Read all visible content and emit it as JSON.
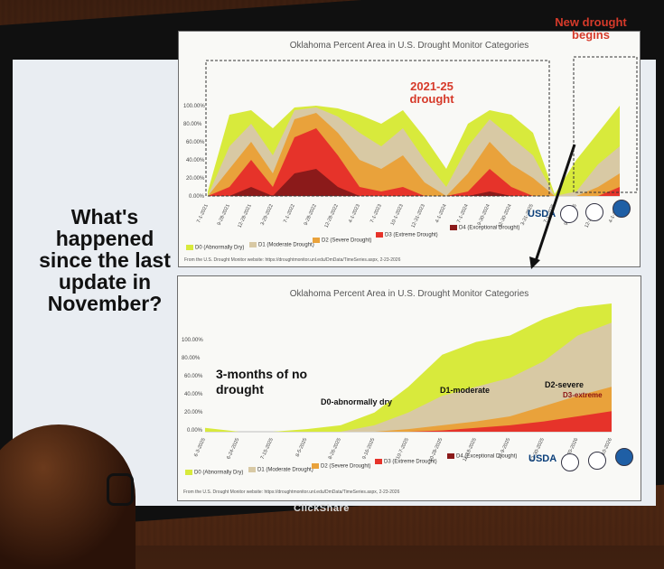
{
  "slide": {
    "question": "What's happened since the last update in November?",
    "brand": "ClickShare"
  },
  "chart_top": {
    "title": "Oklahoma Percent Area in U.S. Drought Monitor Categories",
    "annotation_drought": "2021-25 drought",
    "annotation_new": "New drought begins",
    "yticks": [
      "100.00%",
      "80.00%",
      "60.00%",
      "40.00%",
      "20.00%",
      "0.00%"
    ],
    "xticks": [
      "7-1-2021",
      "9-28-2021",
      "12-28-2021",
      "3-29-2022",
      "7-1-2022",
      "9-28-2022",
      "12-28-2022",
      "4-1-2023",
      "7-1-2023",
      "10-1-2023",
      "12-31-2023",
      "4-1-2024",
      "7-1-2024",
      "9-30-2024",
      "12-30-2024",
      "3-31-2025",
      "7-1-2025",
      "9-30-2025",
      "12-30-2025",
      "4-1-2026"
    ],
    "legend": [
      "D0 (Abnormally Dry)",
      "D1 (Moderate Drought)",
      "D2 (Severe Drought)",
      "D3 (Extreme Drought)",
      "D4 (Exceptional Drought)"
    ],
    "source": "From the U.S. Drought Monitor website: https://droughtmonitor.unl.edu/DmData/TimeSeries.aspx, 2-23-2026",
    "usda": "USDA"
  },
  "chart_bottom": {
    "title": "Oklahoma Percent Area in U.S. Drought Monitor Categories",
    "annotation_nodrought": "3-months of no drought",
    "label_d0": "D0-abnormally dry",
    "label_d1": "D1-moderate",
    "label_d2": "D2-severe",
    "label_d3": "D3-extreme",
    "yticks": [
      "100.00%",
      "80.00%",
      "60.00%",
      "40.00%",
      "20.00%",
      "0.00%"
    ],
    "xticks": [
      "6-3-2025",
      "6-24-2025",
      "7-15-2025",
      "8-5-2025",
      "8-26-2025",
      "9-16-2025",
      "10-7-2025",
      "10-28-2025",
      "11-18-2025",
      "12-9-2025",
      "12-30-2025",
      "1-20-2026",
      "2-10-2026"
    ],
    "legend": [
      "D0 (Abnormally Dry)",
      "D1 (Moderate Drought)",
      "D2 (Severe Drought)",
      "D3 (Extreme Drought)",
      "D4 (Exceptional Drought)"
    ],
    "source": "From the U.S. Drought Monitor website: https://droughtmonitor.unl.edu/DmData/TimeSeries.aspx, 2-23-2026",
    "usda": "USDA"
  },
  "colors": {
    "d0": "#d8ea3c",
    "d1": "#d8c9a4",
    "d2": "#e9a23b",
    "d3": "#e6332a",
    "d4": "#8b1a1a"
  },
  "chart_data": [
    {
      "type": "area",
      "title": "Oklahoma Percent Area in U.S. Drought Monitor Categories",
      "ylim": [
        0,
        100
      ],
      "x": [
        "7-1-2021",
        "9-28-2021",
        "12-28-2021",
        "3-29-2022",
        "7-1-2022",
        "9-28-2022",
        "12-28-2022",
        "4-1-2023",
        "7-1-2023",
        "10-1-2023",
        "12-31-2023",
        "4-1-2024",
        "7-1-2024",
        "9-30-2024",
        "12-30-2024",
        "3-31-2025",
        "7-1-2025",
        "9-30-2025",
        "12-30-2025",
        "4-1-2026"
      ],
      "series": [
        {
          "name": "D0 (Abnormally Dry)",
          "values": [
            5,
            90,
            95,
            75,
            98,
            100,
            97,
            90,
            80,
            95,
            65,
            30,
            80,
            95,
            90,
            70,
            2,
            40,
            70,
            100
          ]
        },
        {
          "name": "D1 (Moderate Drought)",
          "values": [
            0,
            55,
            80,
            45,
            95,
            98,
            88,
            70,
            55,
            75,
            40,
            10,
            55,
            85,
            65,
            45,
            0,
            5,
            35,
            55
          ]
        },
        {
          "name": "D2 (Severe Drought)",
          "values": [
            0,
            30,
            60,
            25,
            85,
            92,
            70,
            40,
            30,
            45,
            15,
            0,
            25,
            60,
            35,
            20,
            0,
            0,
            10,
            25
          ]
        },
        {
          "name": "D3 (Extreme Drought)",
          "values": [
            0,
            10,
            40,
            10,
            65,
            75,
            45,
            10,
            5,
            10,
            0,
            0,
            5,
            30,
            10,
            0,
            0,
            0,
            0,
            10
          ]
        },
        {
          "name": "D4 (Exceptional Drought)",
          "values": [
            0,
            0,
            10,
            0,
            25,
            30,
            10,
            0,
            0,
            0,
            0,
            0,
            0,
            5,
            0,
            0,
            0,
            0,
            0,
            0
          ]
        }
      ]
    },
    {
      "type": "area",
      "title": "Oklahoma Percent Area in U.S. Drought Monitor Categories",
      "ylim": [
        0,
        100
      ],
      "x": [
        "6-3-2025",
        "6-24-2025",
        "7-15-2025",
        "8-5-2025",
        "8-26-2025",
        "9-16-2025",
        "10-7-2025",
        "10-28-2025",
        "11-18-2025",
        "12-9-2025",
        "12-30-2025",
        "1-20-2026",
        "2-10-2026"
      ],
      "series": [
        {
          "name": "D0 (Abnormally Dry)",
          "values": [
            3,
            0,
            0,
            2,
            5,
            15,
            35,
            60,
            70,
            75,
            88,
            97,
            100
          ]
        },
        {
          "name": "D1 (Moderate Drought)",
          "values": [
            0,
            0,
            0,
            0,
            0,
            5,
            15,
            28,
            35,
            42,
            55,
            75,
            85
          ]
        },
        {
          "name": "D2 (Severe Drought)",
          "values": [
            0,
            0,
            0,
            0,
            0,
            0,
            2,
            5,
            8,
            12,
            20,
            28,
            35
          ]
        },
        {
          "name": "D3 (Extreme Drought)",
          "values": [
            0,
            0,
            0,
            0,
            0,
            0,
            0,
            1,
            3,
            5,
            8,
            12,
            16
          ]
        },
        {
          "name": "D4 (Exceptional Drought)",
          "values": [
            0,
            0,
            0,
            0,
            0,
            0,
            0,
            0,
            0,
            0,
            0,
            0,
            0
          ]
        }
      ]
    }
  ]
}
